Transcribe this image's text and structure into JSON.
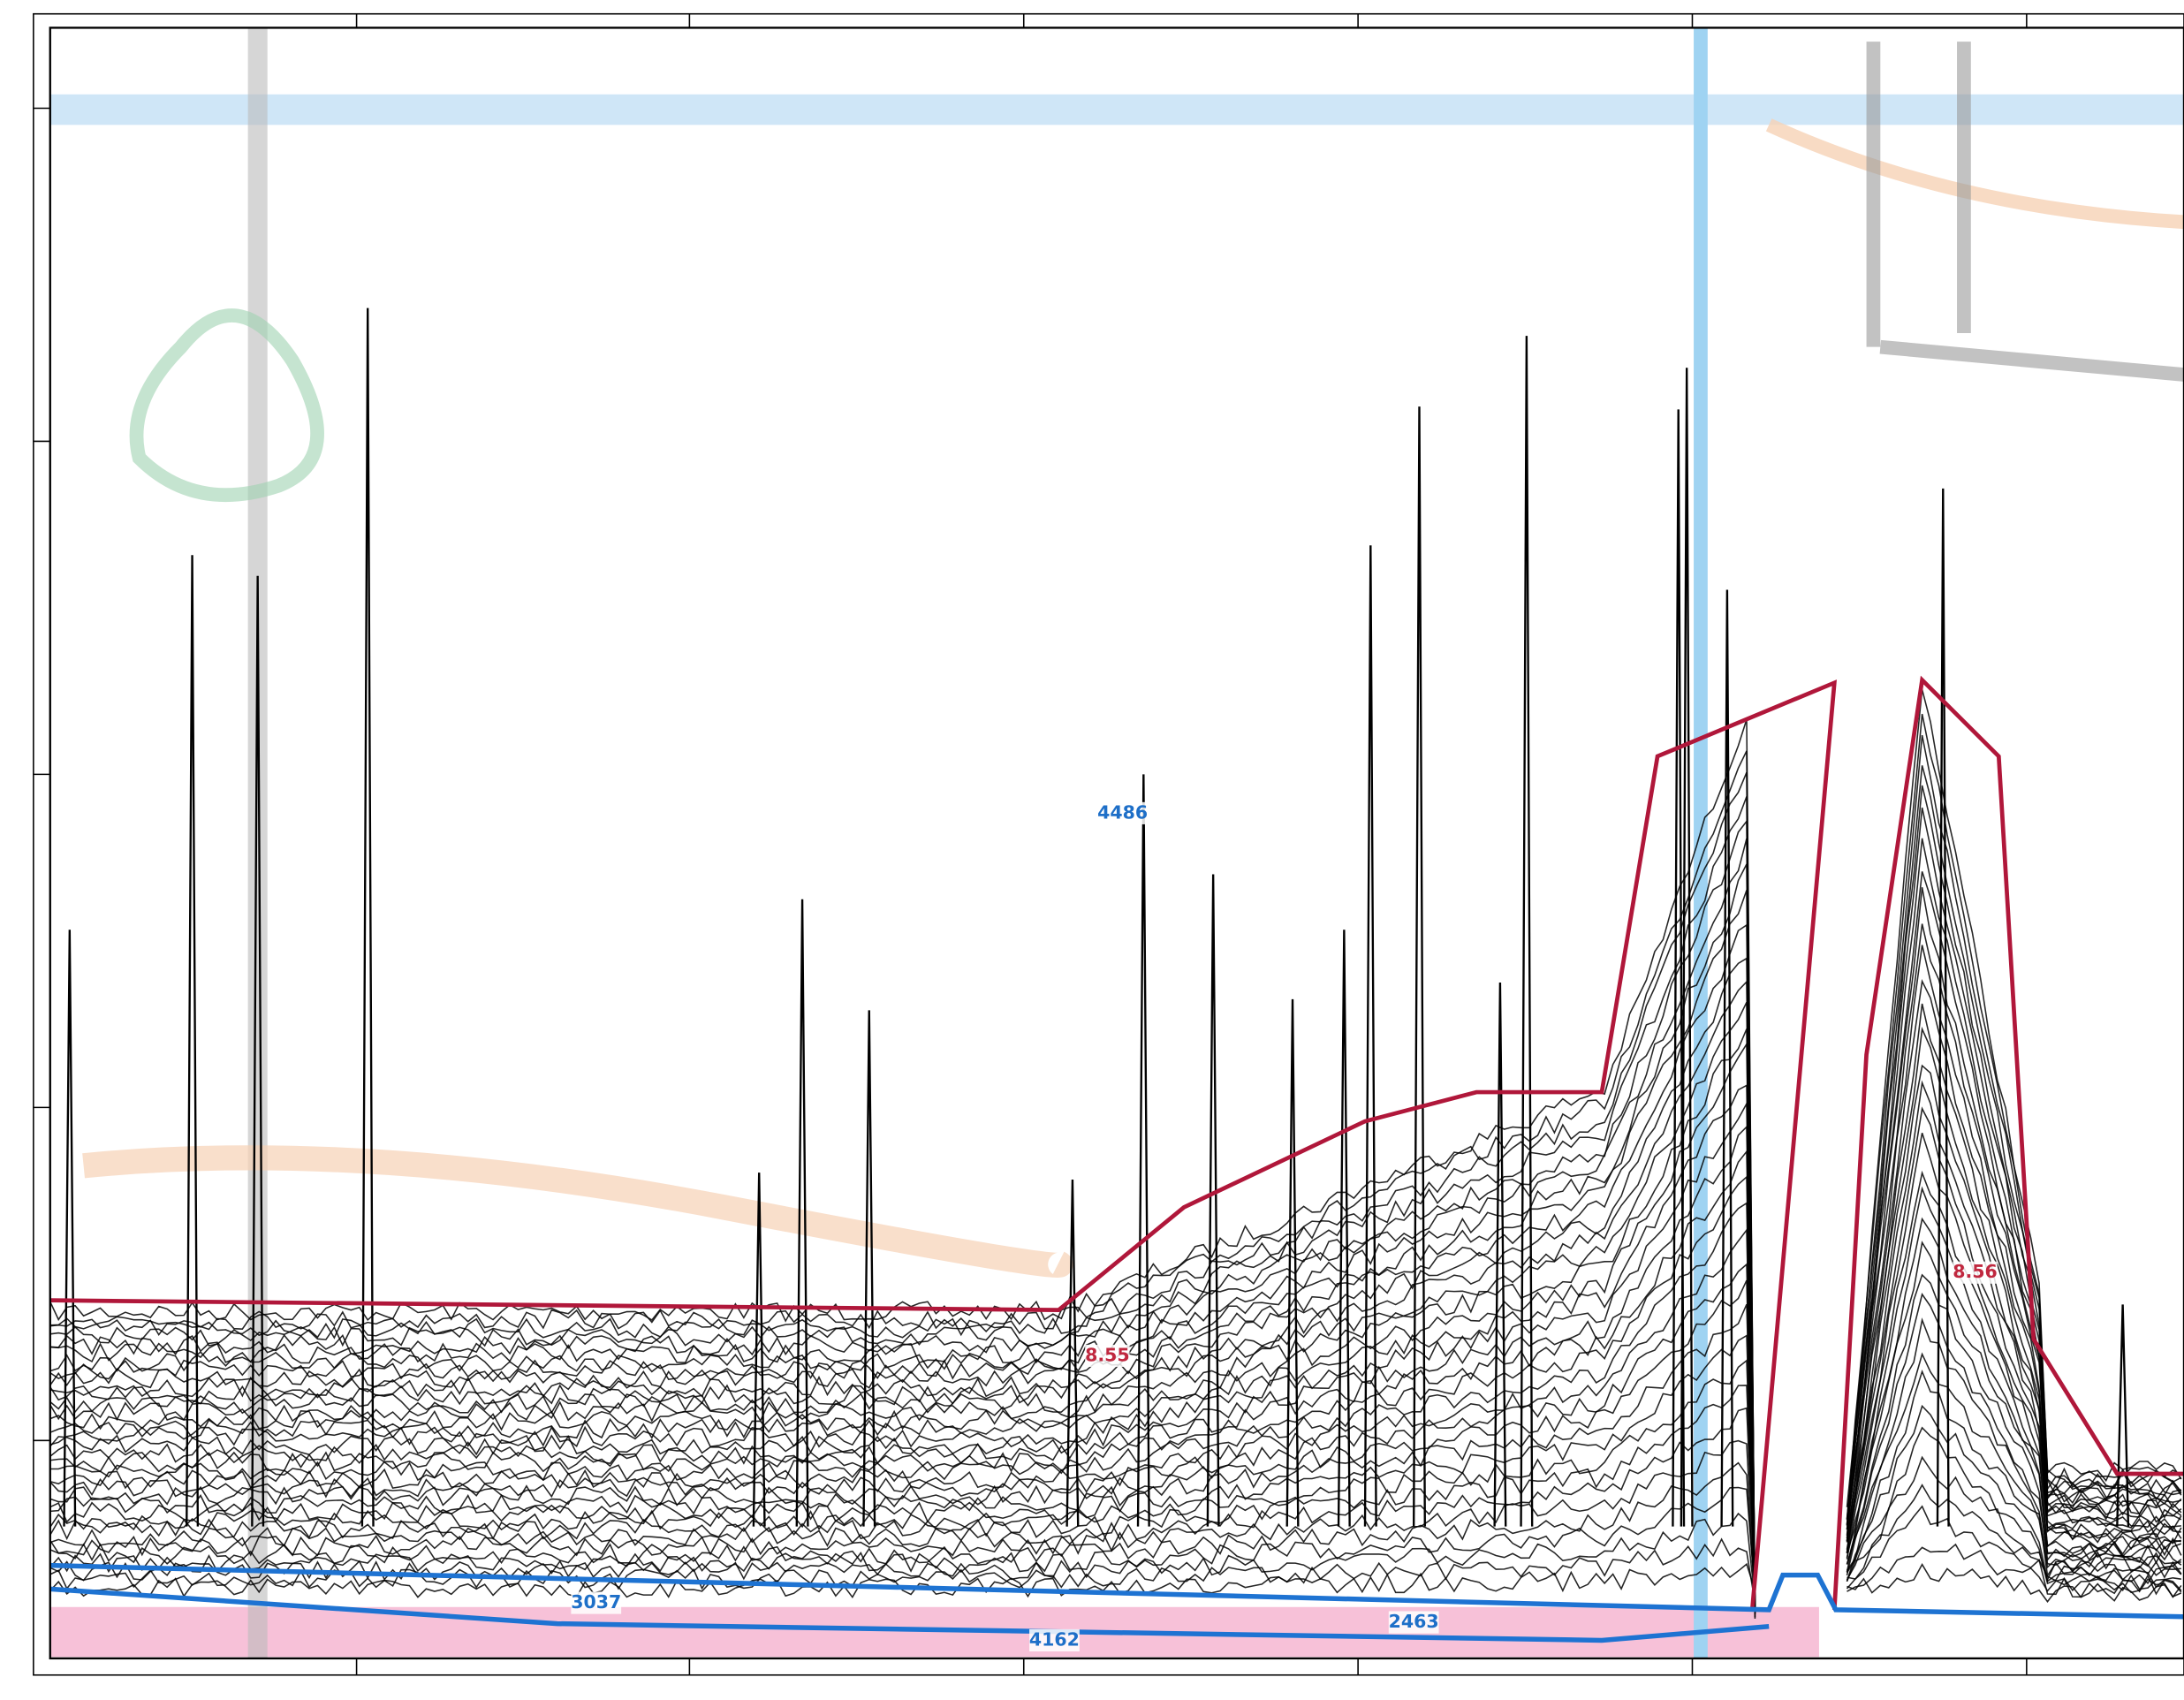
{
  "blue_labels": [
    "4486",
    "3037",
    "4162",
    "2463"
  ],
  "red_labels": [
    "8.55",
    "8.56"
  ]
}
